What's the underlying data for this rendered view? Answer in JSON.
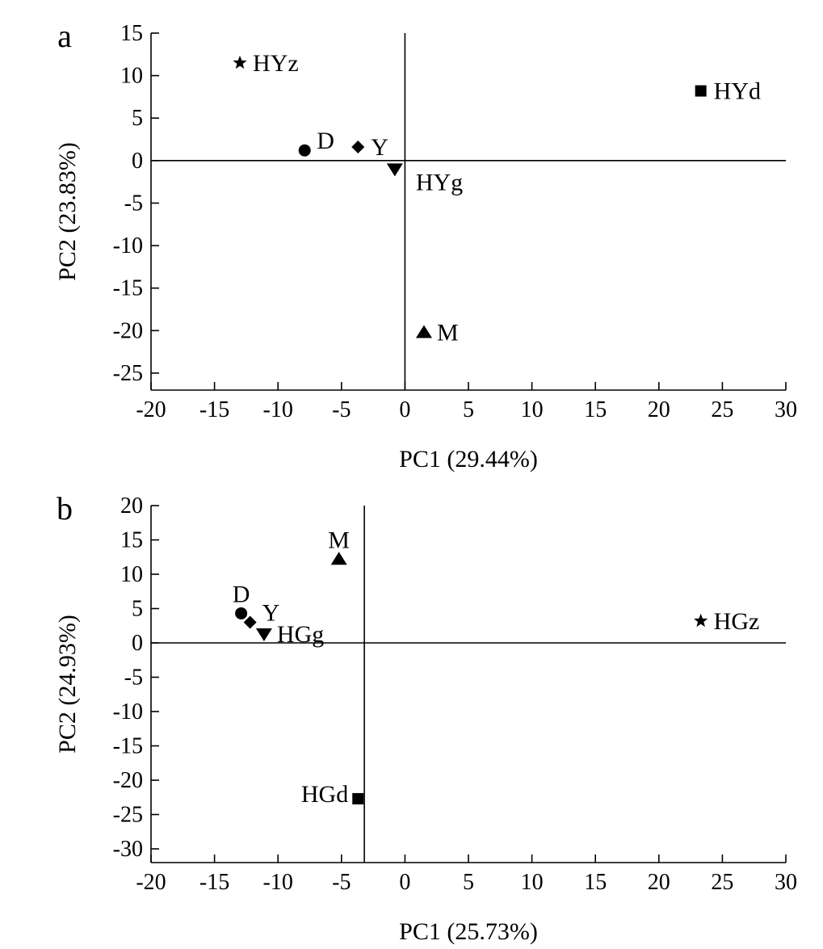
{
  "chart_data": [
    {
      "type": "scatter",
      "panel_label": "a",
      "xlabel": "PC1 (29.44%)",
      "ylabel": "PC2 (23.83%)",
      "xlim": [
        -20,
        30
      ],
      "ylim": [
        -27,
        15
      ],
      "x_ticks": [
        -20,
        -15,
        -10,
        -5,
        0,
        5,
        10,
        15,
        20,
        25,
        30
      ],
      "y_ticks": [
        15,
        10,
        5,
        0,
        -5,
        -10,
        -15,
        -20,
        -25
      ],
      "reference_lines": {
        "x": 0,
        "y": 0
      },
      "grid": false,
      "points": [
        {
          "label": "HYz",
          "marker": "star",
          "x": -13.0,
          "y": 11.5,
          "label_pos": "right"
        },
        {
          "label": "HYd",
          "marker": "square",
          "x": 23.3,
          "y": 8.2,
          "label_pos": "right"
        },
        {
          "label": "D",
          "marker": "circle",
          "x": -7.9,
          "y": 1.2,
          "label_pos": "upper-right"
        },
        {
          "label": "Y",
          "marker": "diamond",
          "x": -3.7,
          "y": 1.6,
          "label_pos": "right"
        },
        {
          "label": "HYg",
          "marker": "triangle-down",
          "x": -0.8,
          "y": -1.0,
          "label_pos": "lower-right"
        },
        {
          "label": "M",
          "marker": "triangle-up",
          "x": 1.5,
          "y": -20.2,
          "label_pos": "right"
        }
      ]
    },
    {
      "type": "scatter",
      "panel_label": "b",
      "xlabel": "PC1 (25.73%)",
      "ylabel": "PC2 (24.93%)",
      "xlim": [
        -20,
        30
      ],
      "ylim": [
        -32,
        20
      ],
      "x_ticks": [
        -20,
        -15,
        -10,
        -5,
        0,
        5,
        10,
        15,
        20,
        25,
        30
      ],
      "y_ticks": [
        20,
        15,
        10,
        5,
        0,
        -5,
        -10,
        -15,
        -20,
        -25,
        -30
      ],
      "reference_lines": {
        "x": -3.2,
        "y": 0
      },
      "grid": false,
      "points": [
        {
          "label": "M",
          "marker": "triangle-up",
          "x": -5.2,
          "y": 12.2,
          "label_pos": "above"
        },
        {
          "label": "D",
          "marker": "circle",
          "x": -12.9,
          "y": 4.3,
          "label_pos": "above"
        },
        {
          "label": "Y",
          "marker": "diamond",
          "x": -12.2,
          "y": 3.0,
          "label_pos": "upper-right"
        },
        {
          "label": "HGg",
          "marker": "triangle-down",
          "x": -11.1,
          "y": 1.3,
          "label_pos": "right"
        },
        {
          "label": "HGz",
          "marker": "star",
          "x": 23.3,
          "y": 3.2,
          "label_pos": "right"
        },
        {
          "label": "HGd",
          "marker": "square",
          "x": -3.7,
          "y": -22.7,
          "label_pos": "left"
        }
      ]
    }
  ]
}
